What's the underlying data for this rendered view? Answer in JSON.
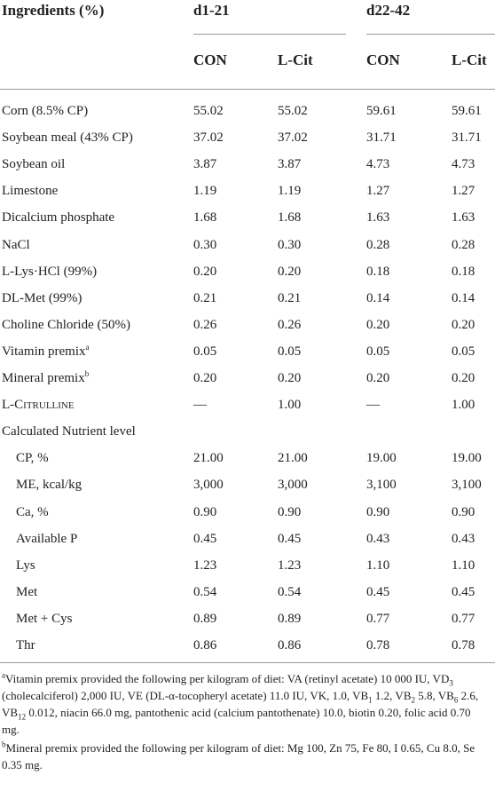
{
  "header": {
    "title": "Ingredients (%)",
    "groups": [
      "d1-21",
      "d22-42"
    ],
    "columns": [
      "CON",
      "L-Cit",
      "CON",
      "L-Cit"
    ]
  },
  "table": {
    "rows": [
      {
        "label": "Corn (8.5% CP)",
        "values": [
          "55.02",
          "55.02",
          "59.61",
          "59.61"
        ]
      },
      {
        "label": "Soybean meal (43% CP)",
        "values": [
          "37.02",
          "37.02",
          "31.71",
          "31.71"
        ]
      },
      {
        "label": "Soybean oil",
        "values": [
          "3.87",
          "3.87",
          "4.73",
          "4.73"
        ]
      },
      {
        "label": "Limestone",
        "values": [
          "1.19",
          "1.19",
          "1.27",
          "1.27"
        ]
      },
      {
        "label": "Dicalcium phosphate",
        "values": [
          "1.68",
          "1.68",
          "1.63",
          "1.63"
        ]
      },
      {
        "label": "NaCl",
        "values": [
          "0.30",
          "0.30",
          "0.28",
          "0.28"
        ]
      },
      {
        "label": "L-Lys·HCl (99%)",
        "values": [
          "0.20",
          "0.20",
          "0.18",
          "0.18"
        ]
      },
      {
        "label": "DL-Met (99%)",
        "values": [
          "0.21",
          "0.21",
          "0.14",
          "0.14"
        ]
      },
      {
        "label": "Choline Chloride (50%)",
        "values": [
          "0.26",
          "0.26",
          "0.20",
          "0.20"
        ]
      },
      {
        "label": "Vitamin premix",
        "note": "a",
        "values": [
          "0.05",
          "0.05",
          "0.05",
          "0.05"
        ]
      },
      {
        "label": "Mineral premix",
        "note": "b",
        "values": [
          "0.20",
          "0.20",
          "0.20",
          "0.20"
        ]
      },
      {
        "label": "L-Citrulline",
        "values": [
          "—",
          "1.00",
          "—",
          "1.00"
        ]
      },
      {
        "label": "Calculated Nutrient level",
        "values": []
      },
      {
        "label": "CP, %",
        "indent": true,
        "values": [
          "21.00",
          "21.00",
          "19.00",
          "19.00"
        ]
      },
      {
        "label": "ME, kcal/kg",
        "indent": true,
        "values": [
          "3,000",
          "3,000",
          "3,100",
          "3,100"
        ]
      },
      {
        "label": "Ca, %",
        "indent": true,
        "values": [
          "0.90",
          "0.90",
          "0.90",
          "0.90"
        ]
      },
      {
        "label": "Available P",
        "indent": true,
        "values": [
          "0.45",
          "0.45",
          "0.43",
          "0.43"
        ]
      },
      {
        "label": "Lys",
        "indent": true,
        "values": [
          "1.23",
          "1.23",
          "1.10",
          "1.10"
        ]
      },
      {
        "label": "Met",
        "indent": true,
        "values": [
          "0.54",
          "0.54",
          "0.45",
          "0.45"
        ]
      },
      {
        "label": "Met + Cys",
        "indent": true,
        "values": [
          "0.89",
          "0.89",
          "0.77",
          "0.77"
        ]
      },
      {
        "label": "Thr",
        "indent": true,
        "values": [
          "0.86",
          "0.86",
          "0.78",
          "0.78"
        ]
      }
    ]
  },
  "footnotes": [
    {
      "marker": "a",
      "parts": [
        "Vitamin premix provided the following per kilogram of diet: VA (retinyl acetate) 10 000 IU, VD",
        "3",
        " (cholecalciferol) 2,000 IU, VE (DL-α-tocopheryl acetate) 11.0 IU, VK, 1.0, VB",
        "1",
        " 1.2, VB",
        "2",
        " 5.8, VB",
        "6",
        " 2.6, VB",
        "12",
        " 0.012, niacin 66.0 mg, pantothenic acid (calcium pantothenate) 10.0, biotin 0.20, folic acid 0.70 mg."
      ]
    },
    {
      "marker": "b",
      "parts": [
        "Mineral premix provided the following per kilogram of diet: Mg 100, Zn 75, Fe 80, I 0.65, Cu 8.0, Se 0.35 mg."
      ]
    }
  ]
}
